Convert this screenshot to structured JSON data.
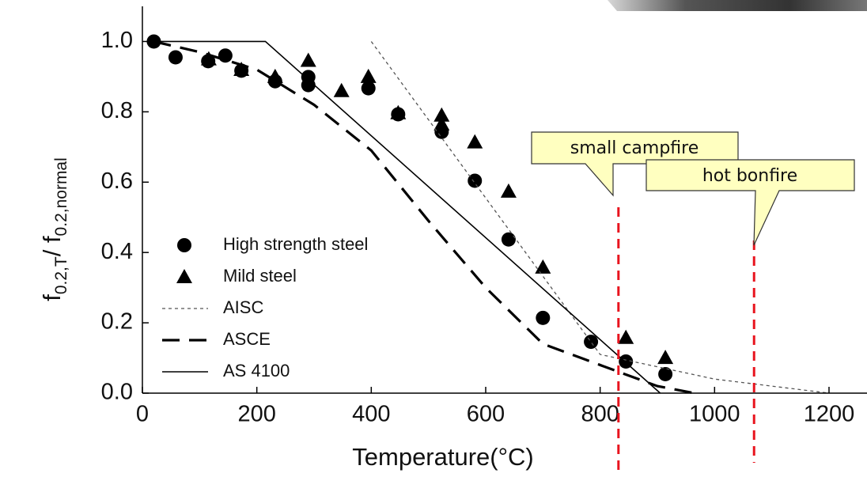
{
  "chart_data": {
    "type": "scatter-line",
    "xlabel": "Temperature(°C)",
    "ylabel": [
      "f",
      "0.2,T",
      "/ f",
      "0.2,normal"
    ],
    "xlim": [
      0,
      1265
    ],
    "ylim": [
      0,
      1.1
    ],
    "xticks": [
      0,
      200,
      400,
      600,
      800,
      1000,
      1200
    ],
    "yticks": [
      {
        "value": 0,
        "label": "0.0"
      },
      0.2,
      0.4,
      0.6,
      0.8,
      {
        "value": 1,
        "label": "1.0"
      }
    ],
    "series": [
      {
        "name": "High strength steel",
        "kind": "circle",
        "color": "#000000",
        "x": [
          20,
          58,
          115,
          145,
          173,
          232,
          290,
          290,
          395,
          447,
          523,
          581,
          640,
          700,
          784,
          845,
          914
        ],
        "values": [
          1.0,
          0.955,
          0.944,
          0.96,
          0.917,
          0.887,
          0.899,
          0.876,
          0.867,
          0.793,
          0.743,
          0.604,
          0.437,
          0.214,
          0.146,
          0.09,
          0.054
        ]
      },
      {
        "name": "Mild steel",
        "kind": "triangle",
        "color": "#000000",
        "x": [
          116,
          173,
          232,
          290,
          348,
          395,
          447,
          523,
          523,
          581,
          640,
          700,
          845,
          914
        ],
        "values": [
          0.95,
          0.92,
          0.9,
          0.946,
          0.86,
          0.9,
          0.797,
          0.79,
          0.765,
          0.714,
          0.574,
          0.358,
          0.158,
          0.101
        ]
      },
      {
        "name": "AISC",
        "kind": "dotted",
        "color": "#555555",
        "x": [
          400,
          800,
          1000,
          1200
        ],
        "values": [
          1.0,
          0.11,
          0.04,
          0.0
        ]
      },
      {
        "name": "ASCE",
        "kind": "dashed",
        "color": "#000000",
        "x": [
          20,
          100,
          200,
          300,
          400,
          500,
          600,
          700,
          800,
          900,
          965
        ],
        "values": [
          1.0,
          0.97,
          0.92,
          0.82,
          0.69,
          0.49,
          0.3,
          0.14,
          0.08,
          0.02,
          0.0
        ]
      },
      {
        "name": "AS 4100",
        "kind": "solid",
        "color": "#000000",
        "x": [
          20,
          215,
          905
        ],
        "values": [
          1.0,
          1.0,
          0.0
        ]
      }
    ],
    "annotations": [
      {
        "text": "small campfire",
        "x": 832,
        "color": "#e8141e"
      },
      {
        "text": "hot bonfire",
        "x": 1069,
        "color": "#e8141e"
      }
    ]
  }
}
